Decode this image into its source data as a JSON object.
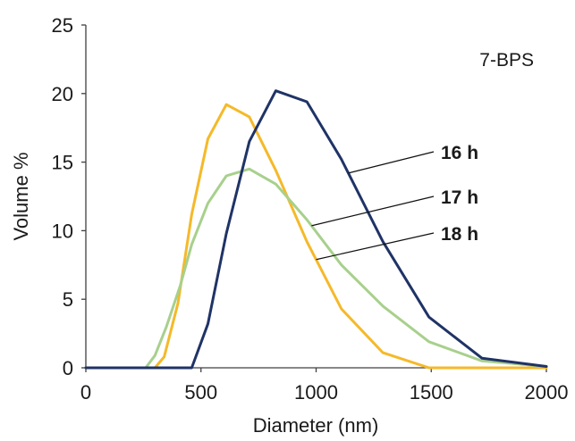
{
  "chart_data": {
    "type": "line",
    "title": "",
    "xlabel": "Diameter (nm)",
    "ylabel": "Volume %",
    "xlim": [
      0,
      2000
    ],
    "ylim": [
      0,
      25
    ],
    "xticks": [
      0,
      500,
      1000,
      1500,
      2000
    ],
    "yticks": [
      0,
      5,
      10,
      15,
      20,
      25
    ],
    "xtick_labels": [
      "0",
      "500",
      "1000",
      "1500",
      "2000"
    ],
    "ytick_labels": [
      "0",
      "5",
      "10",
      "15",
      "20",
      "25"
    ],
    "grid": false,
    "legend": "none",
    "annotation": "7-BPS",
    "series": [
      {
        "name": "16 h",
        "color": "#1f3366",
        "x": [
          0,
          460,
          530,
          610,
          710,
          825,
          960,
          1110,
          1290,
          1490,
          1720,
          2000
        ],
        "y": [
          0,
          0,
          3.2,
          9.8,
          16.5,
          20.2,
          19.4,
          15.2,
          9.2,
          3.7,
          0.7,
          0.1
        ]
      },
      {
        "name": "17 h",
        "color": "#a8d08d",
        "x": [
          0,
          260,
          300,
          350,
          410,
          460,
          530,
          610,
          710,
          825,
          960,
          1110,
          1290,
          1490,
          1720,
          2000
        ],
        "y": [
          0,
          0,
          0.9,
          3.0,
          6.0,
          9.0,
          12.0,
          14.0,
          14.5,
          13.4,
          10.8,
          7.5,
          4.5,
          1.9,
          0.5,
          0.1
        ]
      },
      {
        "name": "18 h",
        "color": "#f5b929",
        "x": [
          0,
          300,
          340,
          400,
          460,
          530,
          610,
          710,
          825,
          960,
          1110,
          1290,
          1490,
          2000
        ],
        "y": [
          0,
          0,
          0.8,
          4.7,
          11.2,
          16.7,
          19.2,
          18.3,
          14.4,
          9.2,
          4.3,
          1.1,
          0,
          0
        ]
      }
    ],
    "series_labels": [
      {
        "text": "16 h",
        "pointer_to": {
          "series": "16 h",
          "x": 1140
        }
      },
      {
        "text": "17 h",
        "pointer_to": {
          "series": "17 h",
          "x": 980
        }
      },
      {
        "text": "18 h",
        "pointer_to": {
          "series": "18 h",
          "x": 1000
        }
      }
    ]
  }
}
